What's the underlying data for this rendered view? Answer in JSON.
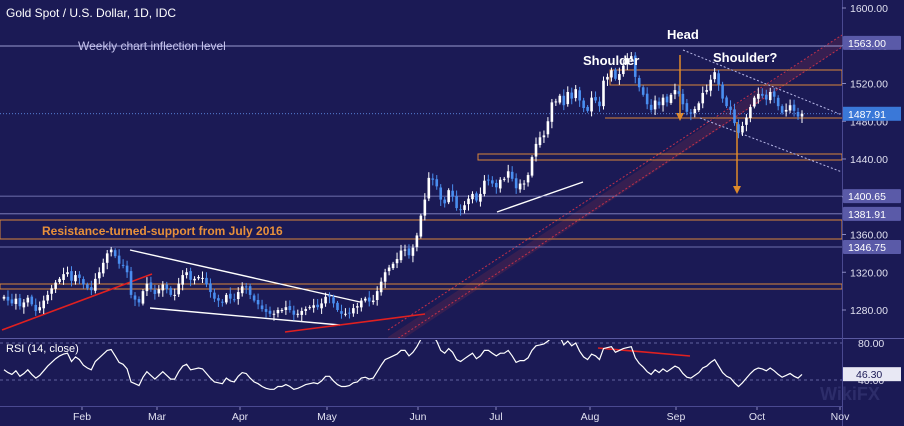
{
  "header": {
    "title": "Gold Spot / U.S. Dollar, 1D, IDC"
  },
  "chart_data": [
    {
      "type": "candlestick",
      "series_name": "Gold Spot / U.S. Dollar",
      "timeframe": "1D",
      "source": "IDC",
      "y_range": [
        1240,
        1610
      ],
      "y_ticks": [
        1600,
        1560,
        1520,
        1480,
        1440,
        1400,
        1360,
        1320,
        1280
      ],
      "y_tick_labels": [
        "1600.00",
        "1560.00",
        "1520.00",
        "1480.00",
        "1440.00",
        "1400.00",
        "1360.00",
        "1320.00",
        "1280.00"
      ],
      "x_labels": [
        "Feb",
        "Mar",
        "Apr",
        "May",
        "Jun",
        "Jul",
        "Aug",
        "Sep",
        "Oct",
        "Nov"
      ],
      "price_levels": [
        {
          "value": 1563.0,
          "label": "1563.00"
        },
        {
          "value": 1400.65,
          "label": "1400.65"
        },
        {
          "value": 1381.91,
          "label": "1381.91"
        },
        {
          "value": 1346.75,
          "label": "1346.75"
        }
      ],
      "last_price": {
        "value": 1487.91,
        "label": "1487.91"
      },
      "closes": [
        1294,
        1290,
        1287,
        1292,
        1284,
        1288,
        1293,
        1286,
        1279,
        1283,
        1290,
        1296,
        1303,
        1309,
        1313,
        1318,
        1320,
        1311,
        1317,
        1314,
        1307,
        1303,
        1301,
        1313,
        1320,
        1330,
        1340,
        1344,
        1337,
        1329,
        1327,
        1320,
        1296,
        1291,
        1288,
        1300,
        1308,
        1302,
        1297,
        1302,
        1307,
        1302,
        1296,
        1296,
        1308,
        1317,
        1320,
        1312,
        1313,
        1315,
        1314,
        1307,
        1299,
        1292,
        1290,
        1288,
        1296,
        1292,
        1291,
        1299,
        1305,
        1304,
        1296,
        1290,
        1286,
        1281,
        1278,
        1276,
        1276,
        1280,
        1280,
        1283,
        1280,
        1275,
        1276,
        1279,
        1281,
        1283,
        1285,
        1283,
        1287,
        1294,
        1294,
        1287,
        1280,
        1276,
        1276,
        1277,
        1282,
        1284,
        1290,
        1292,
        1289,
        1290,
        1300,
        1310,
        1320,
        1325,
        1329,
        1334,
        1343,
        1344,
        1338,
        1346,
        1359,
        1380,
        1397,
        1420,
        1418,
        1411,
        1397,
        1393,
        1407,
        1400,
        1388,
        1386,
        1391,
        1398,
        1403,
        1396,
        1403,
        1417,
        1418,
        1414,
        1410,
        1418,
        1419,
        1427,
        1419,
        1409,
        1414,
        1414,
        1423,
        1442,
        1456,
        1463,
        1465,
        1480,
        1500,
        1501,
        1507,
        1497,
        1511,
        1504,
        1514,
        1502,
        1494,
        1491,
        1505,
        1502,
        1496,
        1523,
        1527,
        1534,
        1525,
        1530,
        1539,
        1547,
        1549,
        1527,
        1516,
        1508,
        1498,
        1492,
        1502,
        1497,
        1505,
        1500,
        1508,
        1513,
        1509,
        1498,
        1490,
        1488,
        1493,
        1499,
        1510,
        1513,
        1524,
        1532,
        1519,
        1504,
        1496,
        1492,
        1478,
        1468,
        1475,
        1484,
        1495,
        1505,
        1509,
        1507,
        1503,
        1511,
        1506,
        1496,
        1489,
        1492,
        1497,
        1491,
        1485,
        1488
      ],
      "rsi": {
        "label": "RSI (14, close)",
        "last_value": 46.3,
        "last_label": "46.30",
        "y_range": [
          10,
          100
        ],
        "y_ticks": [
          80,
          40
        ],
        "y_tick_labels": [
          "80.00",
          "40.00"
        ],
        "values": [
          51,
          48,
          46,
          50,
          44,
          47,
          51,
          46,
          42,
          45,
          50,
          55,
          59,
          63,
          66,
          68,
          69,
          60,
          65,
          62,
          56,
          53,
          51,
          60,
          64,
          68,
          72,
          73,
          66,
          59,
          57,
          52,
          38,
          36,
          34,
          43,
          49,
          45,
          41,
          45,
          49,
          45,
          41,
          41,
          49,
          55,
          57,
          51,
          52,
          53,
          52,
          47,
          42,
          38,
          37,
          36,
          42,
          39,
          38,
          44,
          48,
          47,
          42,
          38,
          36,
          33,
          31,
          30,
          30,
          33,
          33,
          35,
          33,
          30,
          31,
          33,
          35,
          36,
          37,
          36,
          39,
          44,
          44,
          39,
          35,
          33,
          33,
          34,
          37,
          38,
          42,
          43,
          41,
          42,
          49,
          56,
          62,
          64,
          66,
          68,
          72,
          72,
          66,
          70,
          76,
          84,
          88,
          91,
          88,
          82,
          72,
          69,
          74,
          70,
          62,
          60,
          63,
          66,
          69,
          63,
          66,
          72,
          72,
          69,
          66,
          69,
          69,
          72,
          66,
          59,
          61,
          61,
          64,
          72,
          77,
          78,
          79,
          82,
          86,
          86,
          87,
          78,
          82,
          77,
          80,
          71,
          65,
          62,
          68,
          66,
          62,
          74,
          75,
          76,
          70,
          72,
          74,
          75,
          76,
          64,
          58,
          54,
          49,
          46,
          51,
          48,
          52,
          49,
          52,
          55,
          53,
          47,
          43,
          42,
          45,
          48,
          53,
          55,
          59,
          62,
          55,
          48,
          44,
          42,
          37,
          33,
          37,
          42,
          47,
          51,
          53,
          52,
          50,
          53,
          50,
          46,
          43,
          45,
          47,
          44,
          42,
          46
        ]
      },
      "annotations": [
        "Weekly chart inflection level",
        "Shoulder",
        "Head",
        "Shoulder?",
        "Resistance-turned-support from July 2016"
      ]
    }
  ]
}
